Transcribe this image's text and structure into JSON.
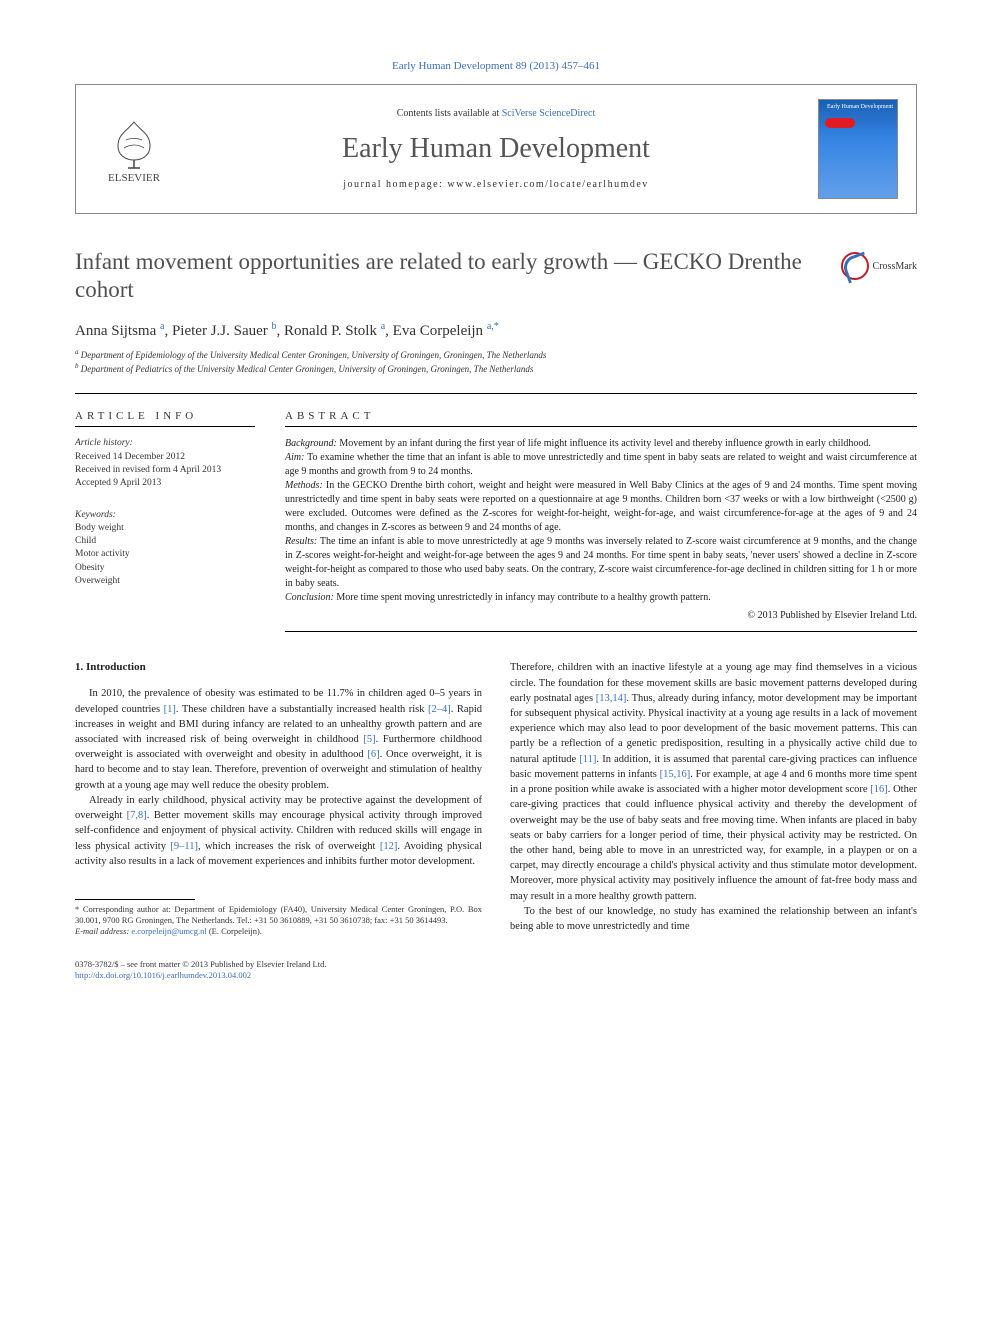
{
  "top_link": "Early Human Development 89 (2013) 457–461",
  "header": {
    "contents_text": "Contents lists available at ",
    "contents_link": "SciVerse ScienceDirect",
    "journal_title": "Early Human Development",
    "homepage": "journal homepage: www.elsevier.com/locate/earlhumdev",
    "elsevier_label": "ELSEVIER",
    "cover_title": "Early Human Development"
  },
  "crossmark_label": "CrossMark",
  "title": "Infant movement opportunities are related to early growth — GECKO Drenthe cohort",
  "authors_html": "Anna Sijtsma <sup>a</sup>, Pieter J.J. Sauer <sup>b</sup>, Ronald P. Stolk <sup>a</sup>, Eva Corpeleijn <sup>a,*</sup>",
  "affiliations": {
    "a": "Department of Epidemiology of the University Medical Center Groningen, University of Groningen, Groningen, The Netherlands",
    "b": "Department of Pediatrics of the University Medical Center Groningen, University of Groningen, Groningen, The Netherlands"
  },
  "article_info": {
    "head": "ARTICLE INFO",
    "history_label": "Article history:",
    "received": "Received 14 December 2012",
    "revised": "Received in revised form 4 April 2013",
    "accepted": "Accepted 9 April 2013",
    "keywords_label": "Keywords:",
    "keywords": [
      "Body weight",
      "Child",
      "Motor activity",
      "Obesity",
      "Overweight"
    ]
  },
  "abstract": {
    "head": "ABSTRACT",
    "background_label": "Background:",
    "background": " Movement by an infant during the first year of life might influence its activity level and thereby influence growth in early childhood.",
    "aim_label": "Aim:",
    "aim": " To examine whether the time that an infant is able to move unrestrictedly and time spent in baby seats are related to weight and waist circumference at age 9 months and growth from 9 to 24 months.",
    "methods_label": "Methods:",
    "methods": " In the GECKO Drenthe birth cohort, weight and height were measured in Well Baby Clinics at the ages of 9 and 24 months. Time spent moving unrestrictedly and time spent in baby seats were reported on a questionnaire at age 9 months. Children born <37 weeks or with a low birthweight (<2500 g) were excluded. Outcomes were defined as the Z-scores for weight-for-height, weight-for-age, and waist circumference-for-age at the ages of 9 and 24 months, and changes in Z-scores as between 9 and 24 months of age.",
    "results_label": "Results:",
    "results": " The time an infant is able to move unrestrictedly at age 9 months was inversely related to Z-score waist circumference at 9 months, and the change in Z-scores weight-for-height and weight-for-age between the ages 9 and 24 months. For time spent in baby seats, 'never users' showed a decline in Z-score weight-for-height as compared to those who used baby seats. On the contrary, Z-score waist circumference-for-age declined in children sitting for 1 h or more in baby seats.",
    "conclusion_label": "Conclusion:",
    "conclusion": " More time spent moving unrestrictedly in infancy may contribute to a healthy growth pattern.",
    "copyright": "© 2013 Published by Elsevier Ireland Ltd."
  },
  "intro": {
    "head": "1. Introduction",
    "p1a": "In 2010, the prevalence of obesity was estimated to be 11.7% in children aged 0–5 years in developed countries ",
    "r1": "[1]",
    "p1b": ". These children have a substantially increased health risk ",
    "r24": "[2–4]",
    "p1c": ". Rapid increases in weight and BMI during infancy are related to an unhealthy growth pattern and are associated with increased risk of being overweight in childhood ",
    "r5": "[5]",
    "p1d": ". Furthermore childhood overweight is associated with overweight and obesity in adulthood ",
    "r6": "[6]",
    "p1e": ". Once overweight, it is hard to become and to stay lean. Therefore, prevention of overweight and stimulation of healthy growth at a young age may well reduce the obesity problem.",
    "p2a": "Already in early childhood, physical activity may be protective against the development of overweight ",
    "r78": "[7,8]",
    "p2b": ". Better movement skills may encourage physical activity through improved self-confidence and enjoyment of physical activity. Children with reduced skills will engage in less physical activity ",
    "r911": "[9–11]",
    "p2c": ", which increases the risk of overweight ",
    "r12": "[12]",
    "p2d": ". Avoiding physical activity also results in a lack of movement experiences and inhibits further motor development.",
    "p3a": "Therefore, children with an inactive lifestyle at a young age may find themselves in a vicious circle. The foundation for these movement skills are basic movement patterns developed during early postnatal ages ",
    "r1314": "[13,14]",
    "p3b": ". Thus, already during infancy, motor development may be important for subsequent physical activity. Physical inactivity at a young age results in a lack of movement experience which may also lead to poor development of the basic movement patterns. This can partly be a reflection of a genetic predisposition, resulting in a physically active child due to natural aptitude ",
    "r11": "[11]",
    "p3c": ". In addition, it is assumed that parental care-giving practices can influence basic movement patterns in infants ",
    "r1516": "[15,16]",
    "p3d": ". For example, at age 4 and 6 months more time spent in a prone position while awake is associated with a higher motor development score ",
    "r16": "[16]",
    "p3e": ". Other care-giving practices that could influence physical activity and thereby the development of overweight may be the use of baby seats and free moving time. When infants are placed in baby seats or baby carriers for a longer period of time, their physical activity may be restricted. On the other hand, being able to move in an unrestricted way, for example, in a playpen or on a carpet, may directly encourage a child's physical activity and thus stimulate motor development. Moreover, more physical activity may positively influence the amount of fat-free body mass and may result in a more healthy growth pattern.",
    "p4": "To the best of our knowledge, no study has examined the relationship between an infant's being able to move unrestrictedly and time"
  },
  "footnotes": {
    "corr_mark": "*",
    "corr": " Corresponding author at: Department of Epidemiology (FA40), University Medical Center Groningen, P.O. Box 30.001, 9700 RG Groningen, The Netherlands. Tel.: +31 50 3610889, +31 50 3610738; fax: +31 50 3614493.",
    "email_label": "E-mail address: ",
    "email": "e.corpeleijn@umcg.nl",
    "email_paren": " (E. Corpeleijn)."
  },
  "bottom": {
    "issn": "0378-3782/$ – see front matter © 2013 Published by Elsevier Ireland Ltd.",
    "doi": "http://dx.doi.org/10.1016/j.earlhumdev.2013.04.002"
  },
  "colors": {
    "link": "#3a6fb7",
    "text": "#222222",
    "muted": "#505050"
  }
}
